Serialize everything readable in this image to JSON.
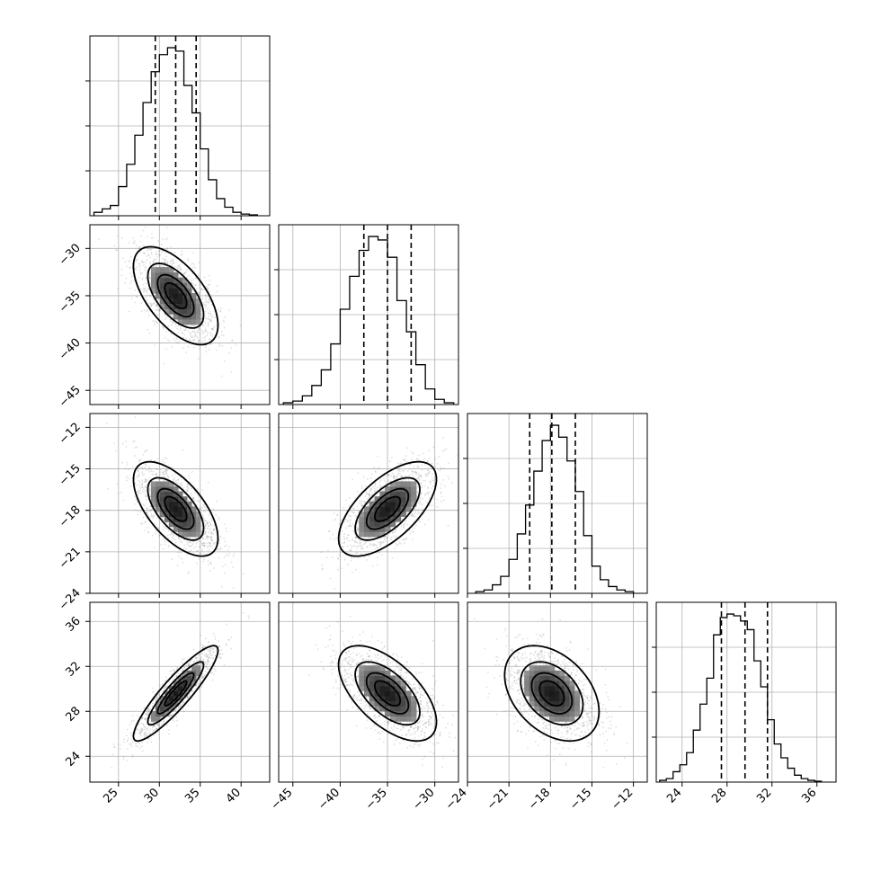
{
  "chart_data": {
    "type": "corner",
    "parameters": [
      {
        "axis_min": 21.5,
        "axis_max": 43.5,
        "x_ticks": [
          25,
          30,
          35,
          40
        ],
        "y_ticks": [],
        "quantiles": [
          29.5,
          32.0,
          34.5
        ],
        "hist_bins": [
          22.5,
          23.5,
          24.5,
          25.5,
          26.5,
          27.5,
          28.5,
          29.5,
          30.5,
          31.5,
          32.5,
          33.5,
          34.5,
          35.5,
          36.5,
          37.5,
          38.5,
          39.5,
          40.5,
          41.5
        ],
        "hist_counts": [
          0.02,
          0.04,
          0.06,
          0.17,
          0.3,
          0.47,
          0.66,
          0.84,
          0.94,
          0.98,
          0.96,
          0.76,
          0.6,
          0.39,
          0.21,
          0.1,
          0.05,
          0.02,
          0.01,
          0.005
        ]
      },
      {
        "axis_min": -46.5,
        "axis_max": -27.5,
        "x_ticks": [
          -45,
          -40,
          -35,
          -30
        ],
        "y_ticks": [
          -30,
          -35,
          -40,
          -45
        ],
        "quantiles": [
          -37.5,
          -35.0,
          -32.5
        ],
        "hist_bins": [
          -45.5,
          -44.5,
          -43.5,
          -42.5,
          -41.5,
          -40.5,
          -39.5,
          -38.5,
          -37.5,
          -36.5,
          -35.5,
          -34.5,
          -33.5,
          -32.5,
          -31.5,
          -30.5,
          -29.5,
          -28.5
        ],
        "hist_counts": [
          0.01,
          0.02,
          0.05,
          0.11,
          0.2,
          0.35,
          0.55,
          0.74,
          0.89,
          0.97,
          0.95,
          0.85,
          0.6,
          0.42,
          0.23,
          0.09,
          0.03,
          0.01
        ]
      },
      {
        "axis_min": -24.0,
        "axis_max": -11.0,
        "x_ticks": [
          -24,
          -21,
          -18,
          -15,
          -12
        ],
        "y_ticks": [
          -12,
          -15,
          -18,
          -21,
          -24
        ],
        "quantiles": [
          -19.5,
          -17.9,
          -16.2
        ],
        "hist_bins": [
          -23.1,
          -22.5,
          -21.9,
          -21.3,
          -20.7,
          -20.1,
          -19.5,
          -18.9,
          -18.3,
          -17.7,
          -17.1,
          -16.5,
          -15.9,
          -15.3,
          -14.7,
          -14.1,
          -13.5,
          -12.9,
          -12.3
        ],
        "hist_counts": [
          0.01,
          0.02,
          0.05,
          0.1,
          0.2,
          0.35,
          0.52,
          0.72,
          0.9,
          0.99,
          0.92,
          0.78,
          0.6,
          0.34,
          0.16,
          0.08,
          0.04,
          0.02,
          0.01
        ]
      },
      {
        "axis_min": 21.7,
        "axis_max": 37.7,
        "x_ticks": [
          24,
          28,
          32,
          36
        ],
        "y_ticks": [
          24,
          28,
          32,
          36
        ],
        "quantiles": [
          27.5,
          29.6,
          31.6
        ],
        "hist_bins": [
          22.3,
          22.9,
          23.5,
          24.1,
          24.7,
          25.3,
          25.9,
          26.5,
          27.1,
          27.7,
          28.3,
          28.9,
          29.5,
          30.1,
          30.7,
          31.3,
          31.9,
          32.5,
          33.1,
          33.7,
          34.3,
          34.9,
          35.5,
          36.1
        ],
        "hist_counts": [
          0.01,
          0.02,
          0.06,
          0.1,
          0.17,
          0.3,
          0.45,
          0.6,
          0.85,
          0.95,
          0.97,
          0.96,
          0.93,
          0.88,
          0.7,
          0.55,
          0.36,
          0.22,
          0.14,
          0.08,
          0.04,
          0.02,
          0.01,
          0.005
        ]
      }
    ],
    "pairs": [
      {
        "x": 0,
        "y": 1,
        "mean": [
          32.0,
          -35.0
        ],
        "sd": [
          2.5,
          2.5
        ],
        "corr": -0.6
      },
      {
        "x": 0,
        "y": 2,
        "mean": [
          32.0,
          -17.9
        ],
        "sd": [
          2.5,
          1.65
        ],
        "corr": -0.62
      },
      {
        "x": 1,
        "y": 2,
        "mean": [
          -35.0,
          -17.9
        ],
        "sd": [
          2.5,
          1.65
        ],
        "corr": 0.63
      },
      {
        "x": 0,
        "y": 3,
        "mean": [
          32.0,
          29.6
        ],
        "sd": [
          2.5,
          2.05
        ],
        "corr": 0.9
      },
      {
        "x": 1,
        "y": 3,
        "mean": [
          -35.0,
          29.6
        ],
        "sd": [
          2.5,
          2.05
        ],
        "corr": -0.6
      },
      {
        "x": 2,
        "y": 3,
        "mean": [
          -17.9,
          29.6
        ],
        "sd": [
          1.65,
          2.05
        ],
        "corr": -0.38
      }
    ],
    "contour_levels_sigma": [
      0.5,
      1.0,
      1.5,
      2.0
    ],
    "grid": true,
    "colors": {
      "points": "#555555",
      "lines": "#000000",
      "grid": "#b0b0b0"
    }
  }
}
